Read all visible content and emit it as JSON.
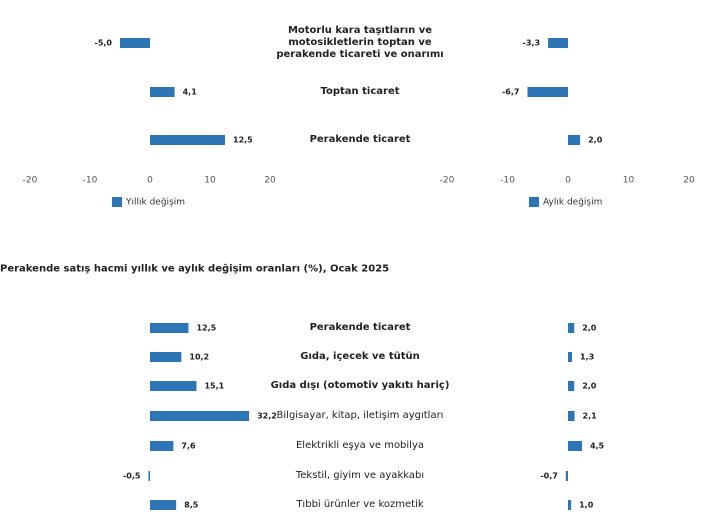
{
  "chart_data": [
    {
      "type": "bar",
      "orientation": "horizontal",
      "categories": [
        "Motorlu kara taşıtların ve motosikletlerin toptan ve perakende ticareti ve onarımı",
        "Toptan ticaret",
        "Perakende ticaret"
      ],
      "xlim": [
        -20,
        20
      ],
      "xticks": [
        -20,
        -10,
        0,
        10,
        20
      ],
      "series": [
        {
          "name": "Yıllık değişim",
          "color": "#2e75b6",
          "values": [
            -5.0,
            4.1,
            12.5
          ],
          "value_labels": [
            "-5,0",
            "4,1",
            "12,5"
          ]
        },
        {
          "name": "Aylık değişim",
          "color": "#2e75b6",
          "values": [
            -3.3,
            -6.7,
            2.0
          ],
          "value_labels": [
            "-3,3",
            "-6,7",
            "2,0"
          ]
        }
      ]
    },
    {
      "type": "bar",
      "orientation": "horizontal",
      "title": "Perakende satış hacmi yıllık ve aylık değişim oranları (%), Ocak 2025",
      "categories": [
        "Perakende ticaret",
        "Gıda, içecek ve tütün",
        "Gıda dışı (otomotiv yakıtı hariç)",
        "Bilgisayar, kitap, iletişim aygıtları",
        "Elektrikli eşya ve mobilya",
        "Tekstil, giyim ve ayakkabı",
        "Tıbbi ürünler ve kozmetik"
      ],
      "xlim": [
        -39,
        39
      ],
      "series": [
        {
          "color": "#2e75b6",
          "values": [
            12.5,
            10.2,
            15.1,
            32.2,
            7.6,
            -0.5,
            8.5
          ],
          "value_labels": [
            "12,5",
            "10,2",
            "15,1",
            "32,2",
            "7,6",
            "-0,5",
            "8,5"
          ]
        },
        {
          "color": "#2e75b6",
          "values": [
            2.0,
            1.3,
            2.0,
            2.1,
            4.5,
            -0.7,
            1.0
          ],
          "value_labels": [
            "2,0",
            "1,3",
            "2,0",
            "2,1",
            "4,5",
            "-0,7",
            "1,0"
          ]
        }
      ]
    }
  ]
}
